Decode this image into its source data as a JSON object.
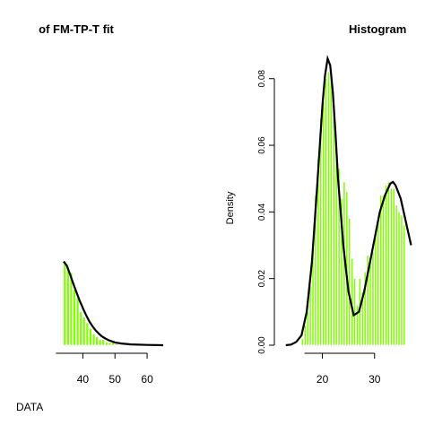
{
  "colors": {
    "bar": "#7fff00",
    "curve": "#000000",
    "axis": "#000000"
  },
  "chart_data": [
    {
      "type": "bar",
      "title": "of FM-TP-T fit",
      "xlabel": "DATA",
      "ylabel": "",
      "xlim": [
        12,
        65
      ],
      "ylim": [
        0,
        0.105
      ],
      "xticks": [
        40,
        50,
        60
      ],
      "xtick_labels": [
        "40",
        "50",
        "60"
      ],
      "bin_width": 1,
      "x": [
        34.5,
        35.5,
        36.5,
        37.5,
        38.5,
        39.5,
        40.5,
        41.5,
        42.5,
        43.5,
        44.5,
        45.5,
        46.5,
        47.5,
        48.5,
        49.5,
        50.5
      ],
      "values": [
        0.03,
        0.028,
        0.026,
        0.02,
        0.017,
        0.012,
        0.01,
        0.008,
        0.006,
        0.004,
        0.003,
        0.002,
        0.002,
        0.001,
        0.001,
        0.001,
        0.0005
      ],
      "curve": {
        "x": [
          34,
          35,
          36,
          37,
          38,
          39,
          40,
          41,
          42,
          43,
          44,
          45,
          46,
          47,
          48,
          50,
          52,
          55,
          60,
          65
        ],
        "y": [
          0.03,
          0.0285,
          0.0255,
          0.0222,
          0.019,
          0.016,
          0.0133,
          0.0108,
          0.0086,
          0.0068,
          0.0053,
          0.0041,
          0.0031,
          0.0024,
          0.0018,
          0.001,
          0.0006,
          0.0003,
          0.0001,
          0.0
        ]
      }
    },
    {
      "type": "bar",
      "title": "Histogram",
      "xlabel": "",
      "ylabel": "Density",
      "xlim": [
        12,
        40
      ],
      "ylim": [
        0,
        0.088
      ],
      "xticks": [
        20,
        30
      ],
      "xtick_labels": [
        "20",
        "30"
      ],
      "yticks": [
        0.0,
        0.02,
        0.04,
        0.06,
        0.08
      ],
      "ytick_labels": [
        "0.00",
        "0.02",
        "0.04",
        "0.06",
        "0.08"
      ],
      "bin_width": 0.5,
      "x": [
        16.25,
        16.75,
        17.25,
        17.75,
        18.25,
        18.75,
        19.25,
        19.75,
        20.25,
        20.75,
        21.25,
        21.75,
        22.25,
        22.75,
        23.25,
        23.75,
        24.25,
        24.75,
        25.25,
        25.75,
        26.25,
        26.75,
        27.25,
        27.75,
        28.25,
        28.75,
        29.25,
        29.75,
        30.25,
        30.75,
        31.25,
        31.75,
        32.25,
        32.75,
        33.25,
        33.75,
        34.25,
        34.75,
        35.25,
        35.75
      ],
      "values": [
        0.002,
        0.006,
        0.01,
        0.018,
        0.031,
        0.045,
        0.056,
        0.068,
        0.073,
        0.08,
        0.082,
        0.08,
        0.072,
        0.06,
        0.053,
        0.044,
        0.049,
        0.046,
        0.038,
        0.026,
        0.02,
        0.012,
        0.02,
        0.016,
        0.022,
        0.027,
        0.026,
        0.028,
        0.033,
        0.038,
        0.045,
        0.045,
        0.048,
        0.049,
        0.047,
        0.047,
        0.042,
        0.04,
        0.039,
        0.036
      ],
      "curve": {
        "x": [
          13,
          14,
          15,
          16,
          17,
          18,
          19,
          20,
          20.5,
          21,
          21.5,
          22,
          22.5,
          23,
          24,
          25,
          26,
          27,
          28,
          29,
          30,
          31,
          32,
          33,
          33.5,
          34,
          35,
          36,
          37
        ],
        "y": [
          0.0,
          0.0002,
          0.001,
          0.003,
          0.01,
          0.025,
          0.048,
          0.072,
          0.081,
          0.086,
          0.084,
          0.076,
          0.064,
          0.05,
          0.03,
          0.016,
          0.009,
          0.01,
          0.016,
          0.024,
          0.032,
          0.04,
          0.045,
          0.0485,
          0.049,
          0.048,
          0.044,
          0.037,
          0.03
        ]
      }
    }
  ]
}
